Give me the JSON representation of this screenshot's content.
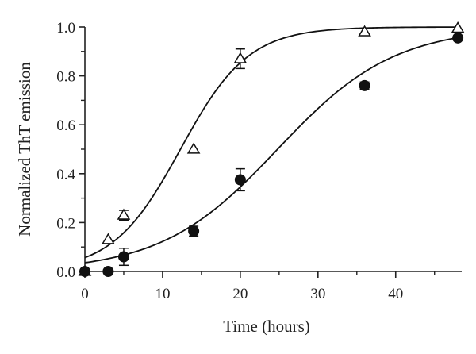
{
  "chart_data": {
    "type": "scatter",
    "title": "",
    "xlabel": "Time (hours)",
    "ylabel": "Normalized ThT emission",
    "xlim": [
      0,
      48.5
    ],
    "ylim": [
      0,
      1.0
    ],
    "x_ticks": [
      0,
      10,
      20,
      30,
      40
    ],
    "x_tick_labels": [
      "0",
      "10",
      "20",
      "30",
      "40"
    ],
    "y_ticks": [
      0,
      0.2,
      0.4,
      0.6,
      0.8,
      1.0
    ],
    "y_tick_labels": [
      "0.0",
      "0.2",
      "0.4",
      "0.6",
      "0.8",
      "1.0"
    ],
    "grid": false,
    "legend": "none",
    "series": [
      {
        "marker": "open-triangle",
        "color": "#111111",
        "points": [
          {
            "x": 0,
            "y": 0.0,
            "err": 0
          },
          {
            "x": 3,
            "y": 0.13,
            "err": 0
          },
          {
            "x": 5,
            "y": 0.23,
            "err": 0.02
          },
          {
            "x": 14,
            "y": 0.5,
            "err": 0
          },
          {
            "x": 20,
            "y": 0.87,
            "err": 0.04
          },
          {
            "x": 36,
            "y": 0.98,
            "err": 0
          },
          {
            "x": 48,
            "y": 0.995,
            "err": 0
          }
        ],
        "fit": {
          "type": "logistic",
          "top": 1.0,
          "k": 0.229,
          "x0": 12.3
        }
      },
      {
        "marker": "filled-circle",
        "color": "#111111",
        "points": [
          {
            "x": 0,
            "y": 0.0,
            "err": 0
          },
          {
            "x": 3,
            "y": 0.0,
            "err": 0
          },
          {
            "x": 5,
            "y": 0.06,
            "err": 0.035
          },
          {
            "x": 14,
            "y": 0.165,
            "err": 0.02
          },
          {
            "x": 20,
            "y": 0.375,
            "err": 0.045
          },
          {
            "x": 36,
            "y": 0.76,
            "err": 0.015
          },
          {
            "x": 48,
            "y": 0.955,
            "err": 0
          }
        ],
        "fit": {
          "type": "logistic",
          "top": 1.0,
          "k": 0.133,
          "x0": 24.8
        }
      }
    ]
  }
}
